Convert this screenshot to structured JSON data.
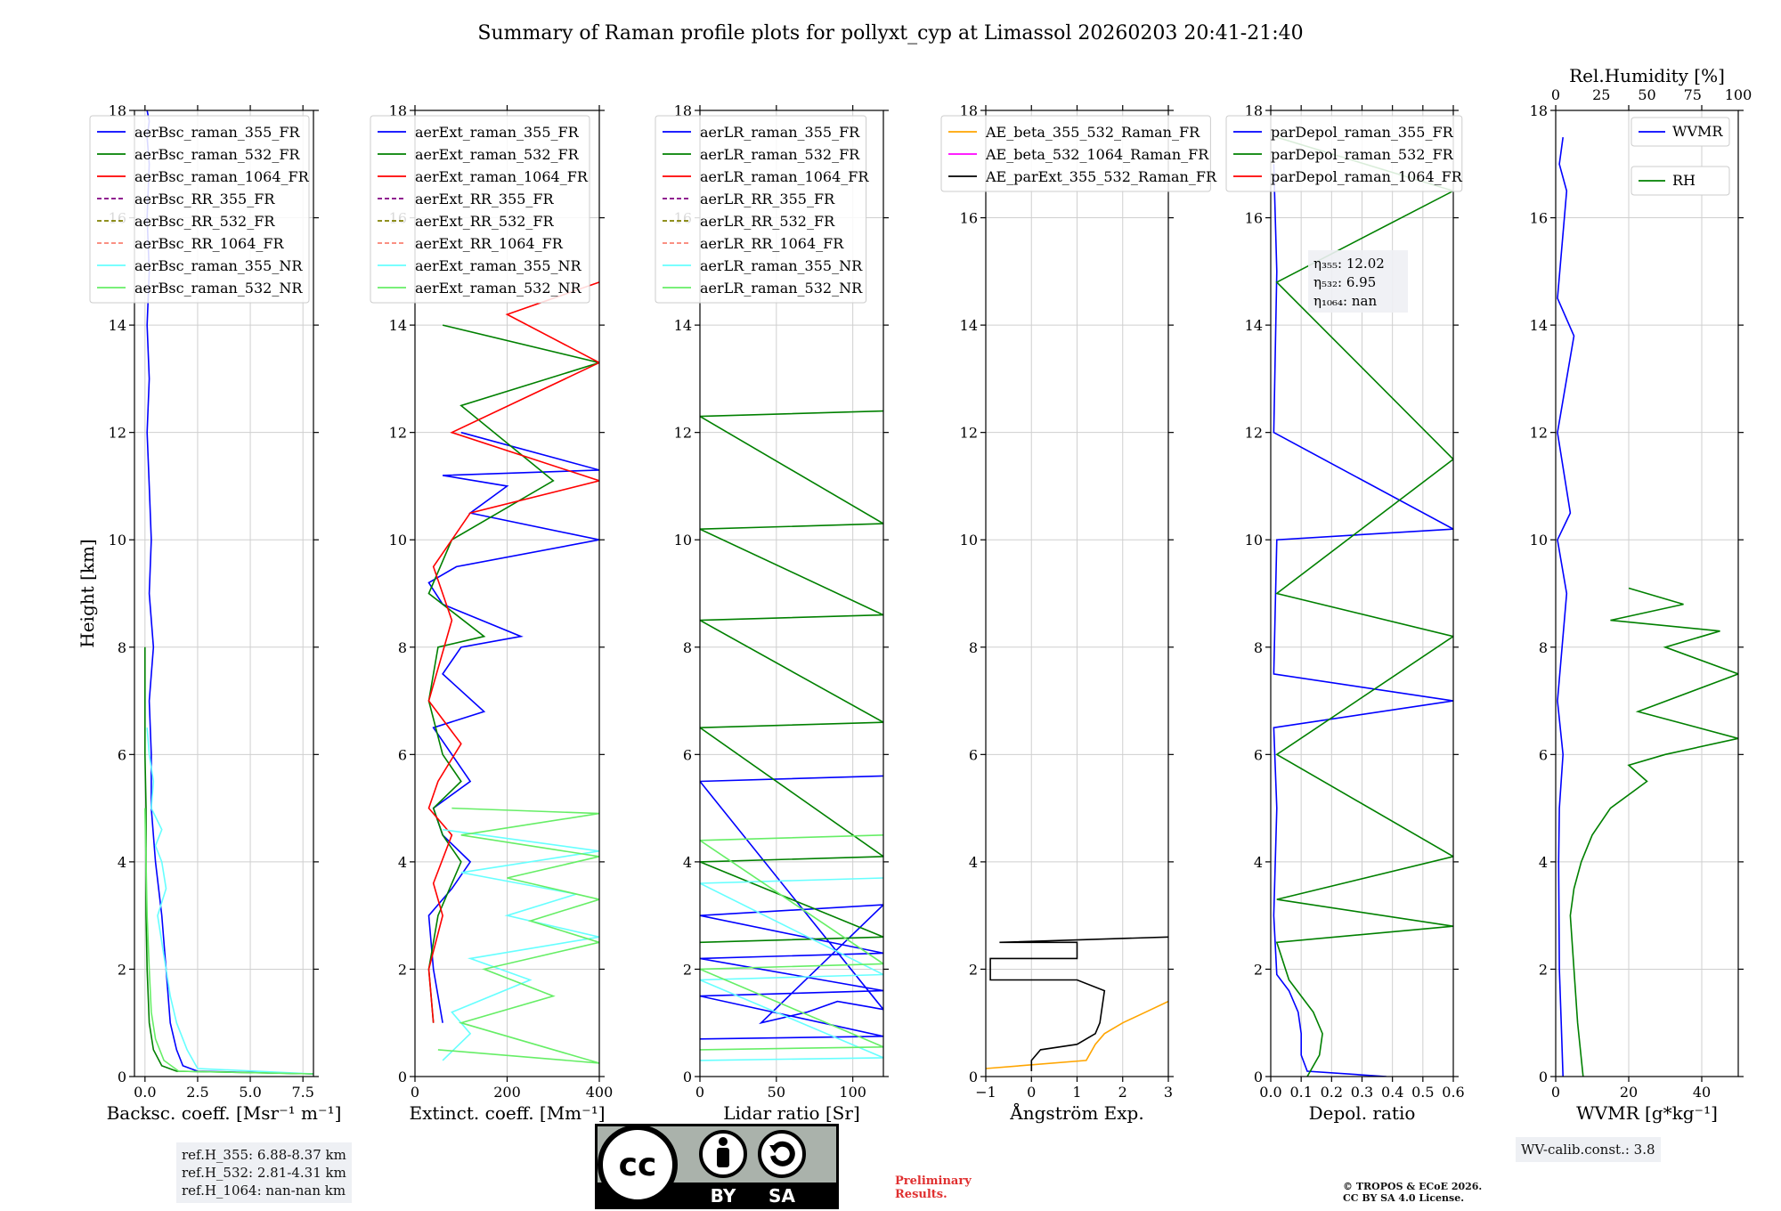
{
  "figure": {
    "title": "Summary of Raman profile plots for pollyxt_cyp at Limassol 20260203 20:41-21:40",
    "preliminary": [
      "Preliminary",
      "Results."
    ],
    "copyright": [
      "© TROPOS & ECoE 2026.",
      "CC BY SA 4.0 License."
    ],
    "license_badge": {
      "cc": "cc",
      "by": "BY",
      "sa": "SA"
    },
    "ref_heights": [
      "ref.H_355: 6.88-8.37 km",
      "ref.H_532: 2.81-4.31 km",
      "ref.H_1064: nan-nan km"
    ],
    "wv_calib": "WV-calib.const.: 3.8",
    "colors": {
      "c355": "#0000ff",
      "c532": "#008000",
      "c1064": "#ff0000",
      "rr355": "#800080",
      "rr532": "#808000",
      "rr1064": "#fa8072",
      "nr355": "#66ffff",
      "nr532": "#66ee66",
      "ae1": "#ffa500",
      "ae2": "#ff00ff",
      "ae3": "#000000"
    }
  },
  "chart_data": [
    {
      "type": "line",
      "id": "bsc",
      "xlabel": "Backsc. coeff. [Msr⁻¹ m⁻¹]",
      "ylabel": "Height [km]",
      "xlim": [
        -0.5,
        8
      ],
      "ylim": [
        0,
        18
      ],
      "xticks": [
        0,
        2.5,
        5,
        7.5
      ],
      "xticklabels": [
        "0.0",
        "2.5",
        "5.0",
        "7.5"
      ],
      "yticks": [
        0,
        2,
        4,
        6,
        8,
        10,
        12,
        14,
        16,
        18
      ],
      "legend_loc": "top-left",
      "series": [
        {
          "name": "aerBsc_raman_355_FR",
          "color": "#0000ff",
          "x": [
            8,
            2.5,
            1.8,
            1.5,
            1.2,
            1.0,
            0.8,
            0.5,
            0.3,
            0.3,
            0.2,
            0.4,
            0.2,
            0.3,
            0.2,
            0.1,
            0.2,
            0.1,
            0.2,
            0.1,
            0.2,
            0.1,
            0.2,
            0.1
          ],
          "y": [
            0.05,
            0.1,
            0.2,
            0.5,
            1.0,
            2.0,
            3.0,
            4.0,
            5.0,
            6.0,
            7.0,
            8.0,
            9.0,
            10.0,
            11.0,
            12.0,
            13.0,
            14.0,
            15.0,
            16.0,
            17.0,
            17.5,
            17.8,
            18.0
          ]
        },
        {
          "name": "aerBsc_raman_532_FR",
          "color": "#008000",
          "x": [
            8,
            1.5,
            0.8,
            0.4,
            0.2,
            0.1,
            0.05,
            0.05,
            0.05,
            0.0,
            0.0
          ],
          "y": [
            0.05,
            0.1,
            0.2,
            0.5,
            1.0,
            2.0,
            3.0,
            4.0,
            5.0,
            6.0,
            8.0
          ]
        },
        {
          "name": "aerBsc_raman_1064_FR",
          "color": "#ff0000",
          "x": [],
          "y": []
        },
        {
          "name": "aerBsc_RR_355_FR",
          "color": "#800080",
          "dashed": true,
          "x": [],
          "y": []
        },
        {
          "name": "aerBsc_RR_532_FR",
          "color": "#808000",
          "dashed": true,
          "x": [],
          "y": []
        },
        {
          "name": "aerBsc_RR_1064_FR",
          "color": "#fa8072",
          "dashed": true,
          "x": [],
          "y": []
        },
        {
          "name": "aerBsc_raman_355_NR",
          "color": "#66ffff",
          "x": [
            8,
            2.5,
            2.0,
            1.5,
            1.2,
            1.0,
            0.8,
            0.6,
            1.0,
            0.8,
            0.5,
            0.8,
            0.3,
            0.4,
            0.2,
            0.1
          ],
          "y": [
            0.05,
            0.15,
            0.5,
            1.0,
            1.5,
            2.0,
            2.5,
            3.0,
            3.5,
            4.0,
            4.3,
            4.6,
            5.0,
            5.5,
            6.0,
            6.5
          ]
        },
        {
          "name": "aerBsc_raman_532_NR",
          "color": "#66ee66",
          "x": [
            8,
            1.6,
            0.9,
            0.5,
            0.3,
            0.2,
            0.1,
            0.05,
            0.0
          ],
          "y": [
            0.05,
            0.1,
            0.3,
            0.7,
            1.2,
            2.0,
            3.0,
            4.0,
            5.0
          ]
        }
      ]
    },
    {
      "type": "line",
      "id": "ext",
      "xlabel": "Extinct. coeff. [Mm⁻¹]",
      "xlim": [
        0,
        400
      ],
      "ylim": [
        0,
        18
      ],
      "xticks": [
        0,
        200,
        400
      ],
      "xticklabels": [
        "0",
        "200",
        "400"
      ],
      "yticks": [
        0,
        2,
        4,
        6,
        8,
        10,
        12,
        14,
        16,
        18
      ],
      "legend_loc": "top-left",
      "series": [
        {
          "name": "aerExt_raman_355_FR",
          "color": "#0000ff",
          "x": [
            60,
            40,
            30,
            80,
            120,
            60,
            40,
            120,
            80,
            40,
            150,
            60,
            100,
            230,
            60,
            30,
            90,
            400,
            120,
            200,
            60,
            400,
            100
          ],
          "y": [
            1.0,
            2.0,
            3.0,
            3.5,
            4.0,
            4.5,
            5.0,
            5.5,
            6.0,
            6.5,
            6.8,
            7.5,
            8.0,
            8.2,
            8.8,
            9.2,
            9.5,
            10.0,
            10.5,
            11.0,
            11.2,
            11.3,
            12.0
          ]
        },
        {
          "name": "aerExt_raman_532_FR",
          "color": "#008000",
          "x": [
            40,
            30,
            50,
            100,
            60,
            40,
            100,
            60,
            30,
            50,
            150,
            30,
            80,
            300,
            100,
            400,
            60
          ],
          "y": [
            1.0,
            2.0,
            3.0,
            4.0,
            4.5,
            5.0,
            5.5,
            6.0,
            7.0,
            8.0,
            8.2,
            9.0,
            10.0,
            11.1,
            12.5,
            13.3,
            14.0
          ]
        },
        {
          "name": "aerExt_raman_1064_FR",
          "color": "#ff0000",
          "x": [
            40,
            30,
            60,
            40,
            80,
            30,
            50,
            100,
            30,
            80,
            40,
            120,
            400,
            80,
            400,
            200,
            400
          ],
          "y": [
            1.0,
            2.0,
            3.0,
            3.6,
            4.5,
            5.0,
            5.5,
            6.2,
            7.0,
            8.5,
            9.5,
            10.5,
            11.1,
            12.0,
            13.3,
            14.2,
            14.8
          ]
        },
        {
          "name": "aerExt_RR_355_FR",
          "color": "#800080",
          "dashed": true,
          "x": [],
          "y": []
        },
        {
          "name": "aerExt_RR_532_FR",
          "color": "#808000",
          "dashed": true,
          "x": [],
          "y": []
        },
        {
          "name": "aerExt_RR_1064_FR",
          "color": "#fa8072",
          "dashed": true,
          "x": [],
          "y": []
        },
        {
          "name": "aerExt_raman_355_NR",
          "color": "#66ffff",
          "x": [
            60,
            120,
            80,
            250,
            120,
            400,
            200,
            350,
            100,
            400,
            60
          ],
          "y": [
            0.3,
            0.8,
            1.2,
            1.8,
            2.2,
            2.6,
            3.0,
            3.4,
            3.8,
            4.2,
            4.6
          ]
        },
        {
          "name": "aerExt_raman_532_NR",
          "color": "#66ee66",
          "x": [
            50,
            400,
            100,
            300,
            150,
            400,
            250,
            400,
            200,
            400,
            100,
            400,
            80
          ],
          "y": [
            0.5,
            0.25,
            1.0,
            1.5,
            2.0,
            2.5,
            2.9,
            3.3,
            3.7,
            4.1,
            4.5,
            4.9,
            5.0
          ]
        }
      ]
    },
    {
      "type": "line",
      "id": "lr",
      "xlabel": "Lidar ratio [Sr]",
      "xlim": [
        0,
        120
      ],
      "ylim": [
        0,
        18
      ],
      "xticks": [
        0,
        50,
        100
      ],
      "xticklabels": [
        "0",
        "50",
        "100"
      ],
      "yticks": [
        0,
        2,
        4,
        6,
        8,
        10,
        12,
        14,
        16,
        18
      ],
      "legend_loc": "top-left",
      "series": [
        {
          "name": "aerLR_raman_355_FR",
          "color": "#0000ff",
          "x": [
            0,
            120,
            0,
            120,
            0,
            120,
            0,
            120,
            40,
            70,
            90,
            110,
            120,
            0,
            120
          ],
          "y": [
            0.7,
            0.75,
            1.5,
            1.6,
            2.2,
            2.3,
            3.0,
            3.2,
            1.0,
            1.2,
            1.4,
            1.3,
            1.25,
            5.5,
            5.6
          ]
        },
        {
          "name": "aerLR_raman_532_FR",
          "color": "#008000",
          "x": [
            0,
            120,
            0,
            120,
            0,
            120,
            0,
            120,
            0,
            120,
            0,
            120
          ],
          "y": [
            2.5,
            2.6,
            4.0,
            4.1,
            6.5,
            6.6,
            8.5,
            8.6,
            10.2,
            10.3,
            12.3,
            12.4
          ]
        },
        {
          "name": "aerLR_raman_1064_FR",
          "color": "#ff0000",
          "x": [],
          "y": []
        },
        {
          "name": "aerLR_RR_355_FR",
          "color": "#800080",
          "dashed": true,
          "x": [],
          "y": []
        },
        {
          "name": "aerLR_RR_532_FR",
          "color": "#808000",
          "dashed": true,
          "x": [],
          "y": []
        },
        {
          "name": "aerLR_RR_1064_FR",
          "color": "#fa8072",
          "dashed": true,
          "x": [],
          "y": []
        },
        {
          "name": "aerLR_raman_355_NR",
          "color": "#66ffff",
          "x": [
            0,
            120,
            0,
            120,
            0,
            120
          ],
          "y": [
            0.3,
            0.35,
            1.8,
            1.9,
            3.6,
            3.7
          ]
        },
        {
          "name": "aerLR_raman_532_NR",
          "color": "#66ee66",
          "x": [
            0,
            120,
            0,
            120,
            0,
            120
          ],
          "y": [
            0.5,
            0.55,
            2.0,
            2.1,
            4.4,
            4.5
          ]
        }
      ]
    },
    {
      "type": "line",
      "id": "ae",
      "xlabel": "Ångström Exp.",
      "xlim": [
        -1,
        3
      ],
      "ylim": [
        0,
        18
      ],
      "xticks": [
        -1,
        0,
        1,
        2,
        3
      ],
      "xticklabels": [
        "−1",
        "0",
        "1",
        "2",
        "3"
      ],
      "yticks": [
        0,
        2,
        4,
        6,
        8,
        10,
        12,
        14,
        16,
        18
      ],
      "legend_loc": "top-left",
      "series": [
        {
          "name": "AE_beta_355_532_Raman_FR",
          "color": "#ffa500",
          "x": [
            -1,
            1.2,
            1.4,
            1.6,
            2.0,
            2.5,
            3.0
          ],
          "y": [
            0.15,
            0.3,
            0.6,
            0.8,
            1.0,
            1.2,
            1.4
          ]
        },
        {
          "name": "AE_beta_532_1064_Raman_FR",
          "color": "#ff00ff",
          "x": [],
          "y": []
        },
        {
          "name": "AE_parExt_355_532_Raman_FR",
          "color": "#000000",
          "x": [
            0,
            0,
            0.2,
            1.0,
            1.4,
            1.5,
            1.6,
            1.0,
            -0.9,
            -0.9,
            1.0,
            1.0,
            -0.7,
            3.0
          ],
          "y": [
            0.1,
            0.3,
            0.5,
            0.6,
            0.8,
            1.0,
            1.6,
            1.8,
            1.8,
            2.2,
            2.2,
            2.5,
            2.5,
            2.6
          ]
        }
      ]
    },
    {
      "type": "line",
      "id": "dep",
      "xlabel": "Depol. ratio",
      "xlim": [
        0,
        0.6
      ],
      "ylim": [
        0,
        18
      ],
      "xticks": [
        0,
        0.1,
        0.2,
        0.3,
        0.4,
        0.5,
        0.6
      ],
      "xticklabels": [
        "0.0",
        "0.1",
        "0.2",
        "0.3",
        "0.4",
        "0.5",
        "0.6"
      ],
      "yticks": [
        0,
        2,
        4,
        6,
        8,
        10,
        12,
        14,
        16,
        18
      ],
      "legend_loc": "top-left",
      "eta_labels": [
        "η₃₅₅: 12.02",
        "η₅₃₂: 6.95",
        "η₁₀₆₄: nan"
      ],
      "series": [
        {
          "name": "parDepol_raman_355_FR",
          "color": "#0000ff",
          "x": [
            0.38,
            0.12,
            0.1,
            0.1,
            0.09,
            0.06,
            0.02,
            0.01,
            0.02,
            0.01,
            0.6,
            0.01,
            0.02,
            0.6,
            0.01,
            0.02,
            0.01
          ],
          "y": [
            0.0,
            0.1,
            0.4,
            0.8,
            1.2,
            1.6,
            1.9,
            3.0,
            5.0,
            6.5,
            7.0,
            7.5,
            10.0,
            10.2,
            12.0,
            15.0,
            17.0
          ]
        },
        {
          "name": "parDepol_raman_532_FR",
          "color": "#008000",
          "x": [
            0.12,
            0.16,
            0.17,
            0.14,
            0.1,
            0.06,
            0.02,
            0.6,
            0.02,
            0.6,
            0.02,
            0.6,
            0.02,
            0.6,
            0.02,
            0.6,
            0.02
          ],
          "y": [
            0.0,
            0.4,
            0.8,
            1.2,
            1.5,
            1.8,
            2.5,
            2.8,
            3.3,
            4.1,
            6.0,
            8.2,
            9.0,
            11.5,
            14.8,
            16.5,
            17.5
          ]
        },
        {
          "name": "parDepol_raman_1064_FR",
          "color": "#ff0000",
          "x": [],
          "y": []
        }
      ]
    },
    {
      "type": "line",
      "id": "wv",
      "xlabel": "WVMR [g*kg⁻¹]",
      "xlabel2": "Rel.Humidity [%]",
      "xlim": [
        0,
        50
      ],
      "ylim": [
        0,
        18
      ],
      "xticks": [
        0,
        20,
        40
      ],
      "xticklabels": [
        "0",
        "20",
        "40"
      ],
      "x2lim": [
        0,
        100
      ],
      "x2ticks": [
        0,
        25,
        50,
        75,
        100
      ],
      "x2ticklabels": [
        "0",
        "25",
        "50",
        "75",
        "100"
      ],
      "yticks": [
        0,
        2,
        4,
        6,
        8,
        10,
        12,
        14,
        16,
        18
      ],
      "legend_loc": "top-right",
      "series": [
        {
          "name": "WVMR",
          "color": "#0000ff",
          "axis": "x",
          "x": [
            2.0,
            1.5,
            1.0,
            0.8,
            1.0,
            2.0,
            0.5,
            3.0,
            0.5,
            4.0,
            0.5,
            5.0,
            0.5,
            3.0,
            1.0,
            2.0
          ],
          "y": [
            0.0,
            1.0,
            2.0,
            4.0,
            5.0,
            6.0,
            7.0,
            9.0,
            10.0,
            10.5,
            12.0,
            13.8,
            14.5,
            16.5,
            17.0,
            17.5
          ]
        },
        {
          "name": "RH",
          "color": "#008000",
          "axis": "x2",
          "x": [
            15,
            12,
            10,
            8,
            10,
            14,
            20,
            30,
            50,
            40,
            60,
            100,
            45,
            100,
            60,
            90,
            30,
            70,
            40
          ],
          "y": [
            0.0,
            1.0,
            2.0,
            3.0,
            3.5,
            4.0,
            4.5,
            5.0,
            5.5,
            5.8,
            6.0,
            6.3,
            6.8,
            7.5,
            8.0,
            8.3,
            8.5,
            8.8,
            9.1
          ]
        }
      ]
    }
  ]
}
